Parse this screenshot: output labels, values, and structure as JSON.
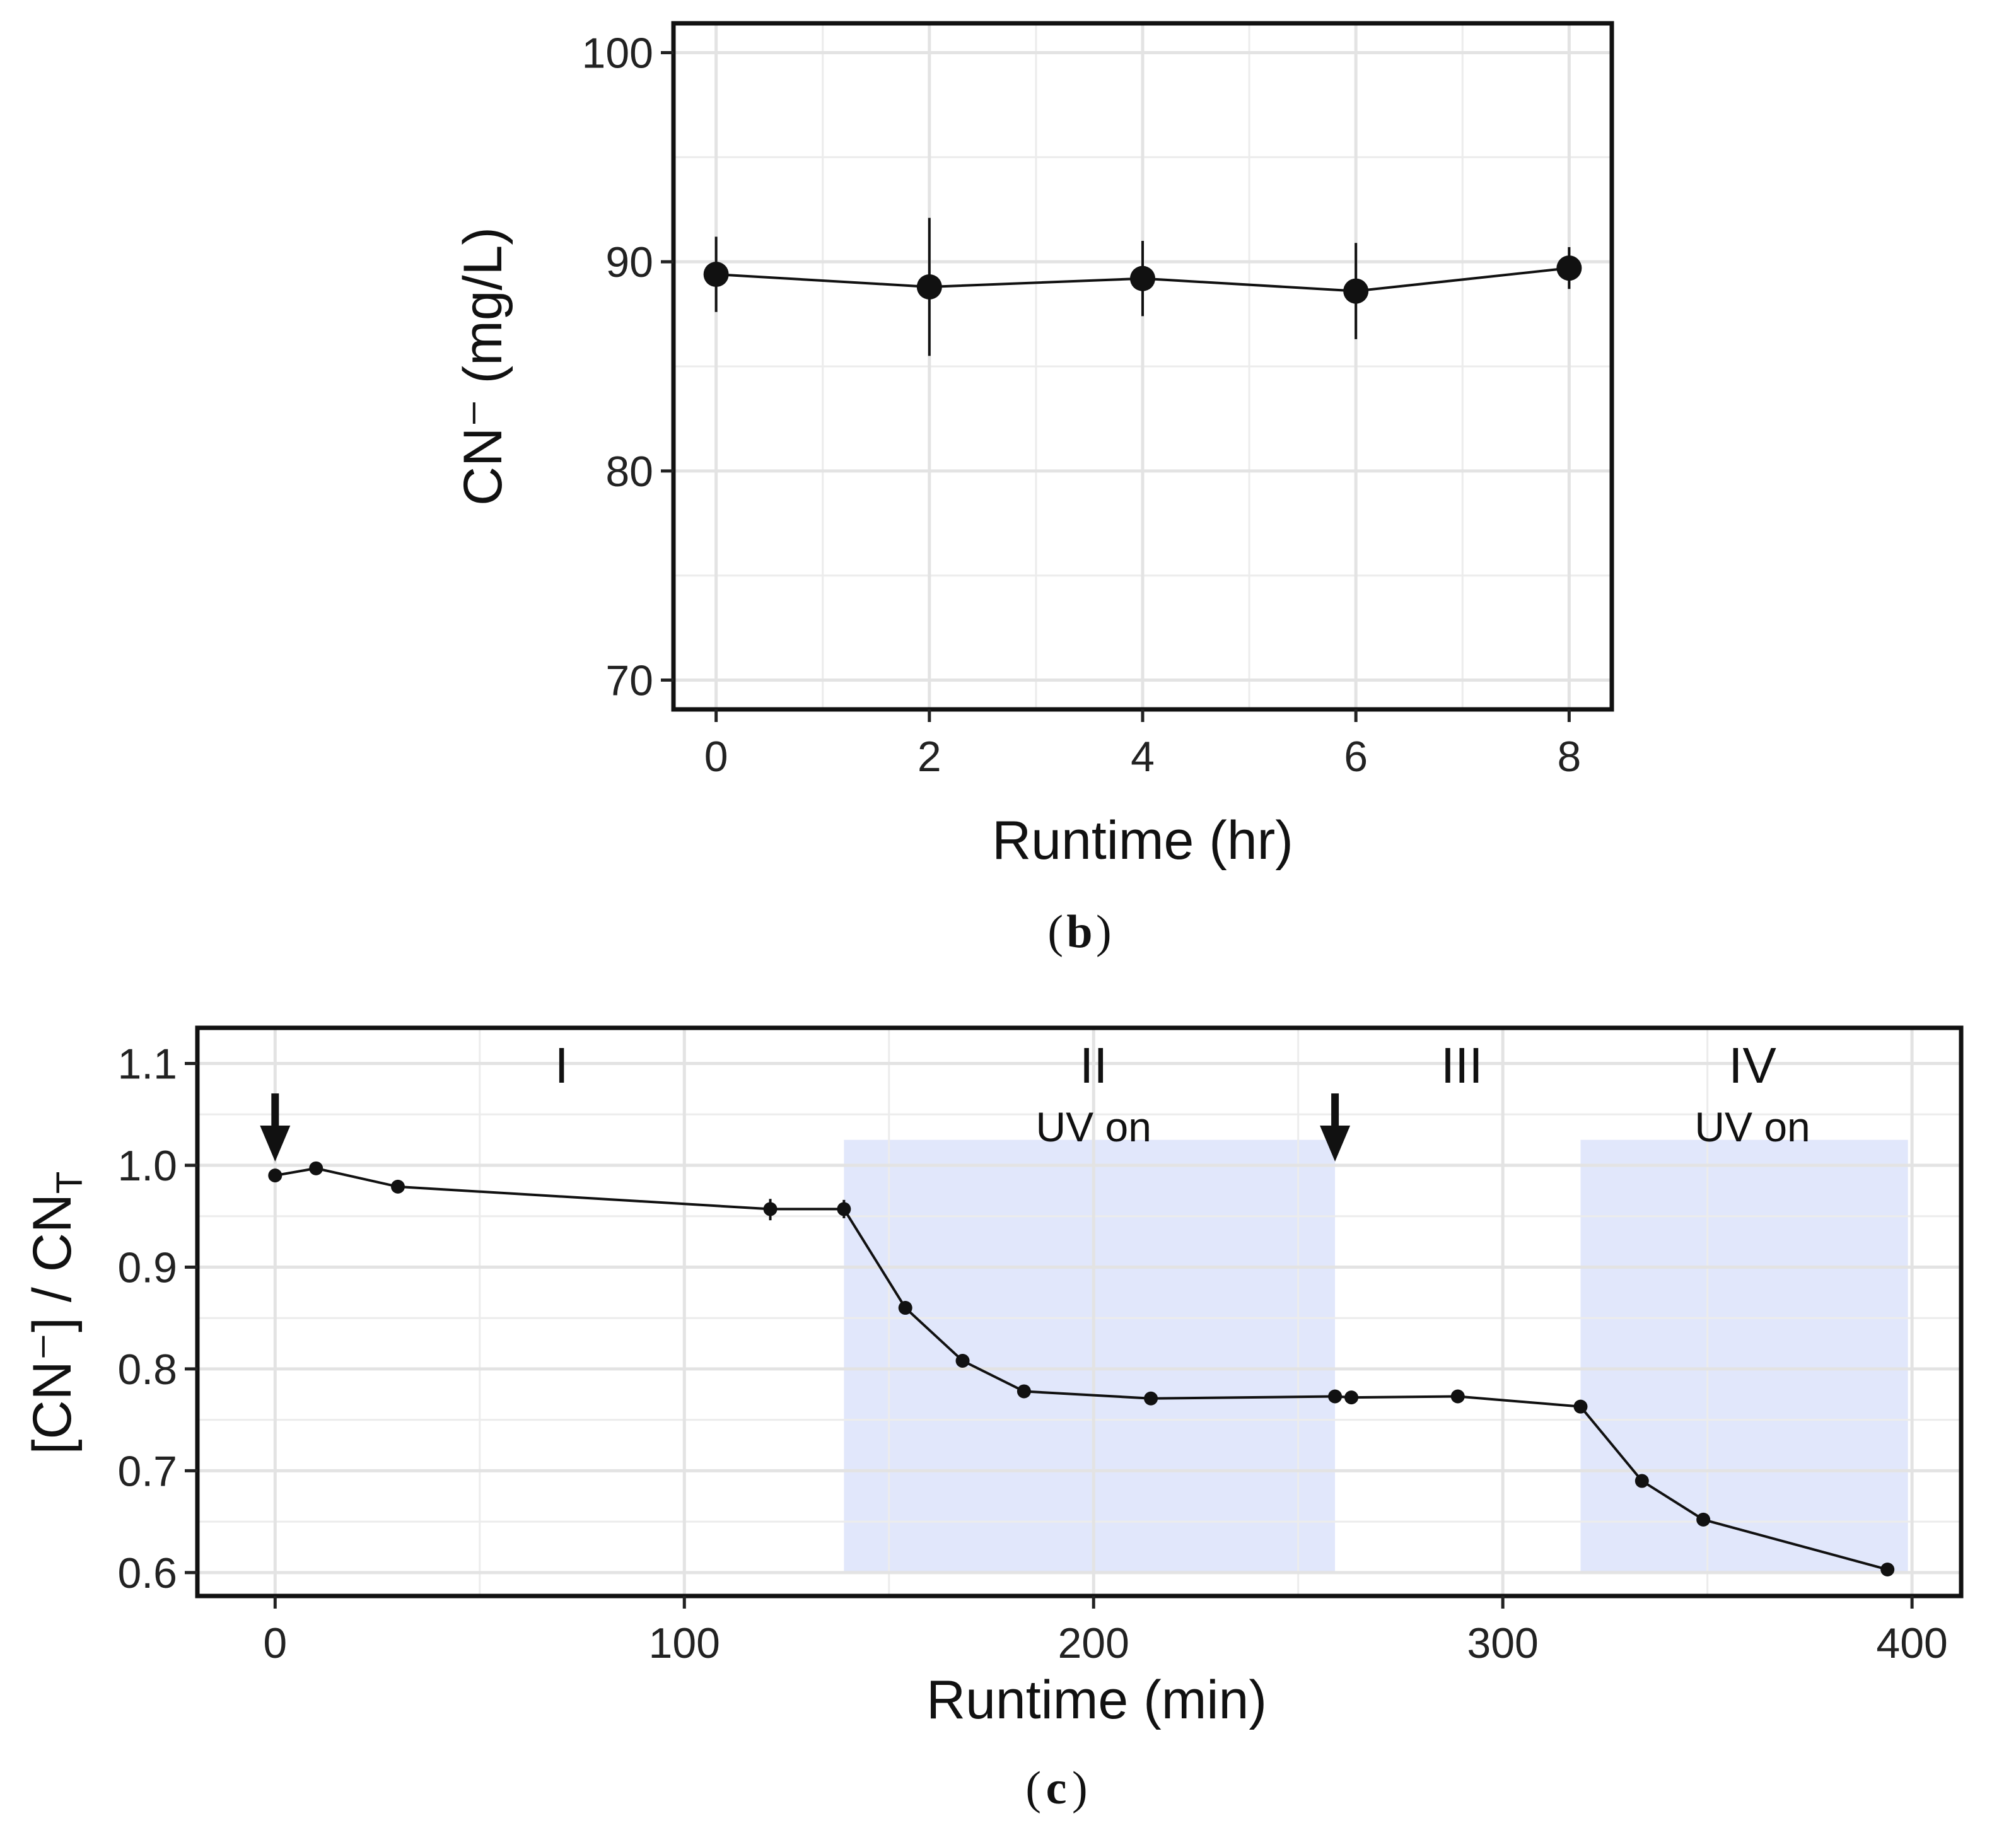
{
  "chart_data": [
    {
      "type": "line",
      "panel": "b",
      "xlabel": "Runtime (hr)",
      "ylabel": "CN⁻ (mg/L)",
      "xlim": [
        -0.4,
        8.4
      ],
      "ylim": [
        68.6,
        101.4
      ],
      "xticks": [
        "0",
        "2",
        "4",
        "6",
        "8"
      ],
      "yticks": [
        "70",
        "80",
        "90",
        "100"
      ],
      "grid": true,
      "points": [
        {
          "x": 0,
          "y": 89.4,
          "ylow": 87.6,
          "yhigh": 91.2
        },
        {
          "x": 2,
          "y": 88.8,
          "ylow": 85.5,
          "yhigh": 92.1
        },
        {
          "x": 4,
          "y": 89.2,
          "ylow": 87.4,
          "yhigh": 91.0
        },
        {
          "x": 6,
          "y": 88.6,
          "ylow": 86.3,
          "yhigh": 90.9
        },
        {
          "x": 8,
          "y": 89.7,
          "ylow": 88.7,
          "yhigh": 90.7
        }
      ],
      "caption": "b"
    },
    {
      "type": "line",
      "panel": "c",
      "xlabel": "Runtime (min)",
      "ylabel_main": "[CN⁻] / CN",
      "ylabel_sub": "T",
      "xlim": [
        -19,
        412
      ],
      "ylim": [
        0.577,
        1.135
      ],
      "xticks": [
        "0",
        "100",
        "200",
        "300",
        "400"
      ],
      "yticks": [
        "0.6",
        "0.7",
        "0.8",
        "0.9",
        "1.0",
        "1.1"
      ],
      "grid": true,
      "shaded_regions": [
        {
          "x0": 139,
          "x1": 259,
          "color": "#e1e7fb"
        },
        {
          "x0": 319,
          "x1": 399,
          "color": "#e1e7fb"
        }
      ],
      "phases": [
        {
          "label": "I",
          "sublabel": "",
          "x": 70
        },
        {
          "label": "II",
          "sublabel": "UV on",
          "x": 200
        },
        {
          "label": "III",
          "sublabel": "",
          "x": 290
        },
        {
          "label": "IV",
          "sublabel": "UV on",
          "x": 361
        }
      ],
      "arrows": [
        0,
        259
      ],
      "points": [
        {
          "x": 0,
          "y": 0.99
        },
        {
          "x": 10,
          "y": 0.997
        },
        {
          "x": 30,
          "y": 0.979
        },
        {
          "x": 121,
          "y": 0.957,
          "ylow": 0.946,
          "yhigh": 0.967
        },
        {
          "x": 139,
          "y": 0.957,
          "ylow": 0.948,
          "yhigh": 0.966
        },
        {
          "x": 154,
          "y": 0.86
        },
        {
          "x": 168,
          "y": 0.808
        },
        {
          "x": 183,
          "y": 0.778
        },
        {
          "x": 214,
          "y": 0.771
        },
        {
          "x": 259,
          "y": 0.773
        },
        {
          "x": 263,
          "y": 0.772
        },
        {
          "x": 289,
          "y": 0.773
        },
        {
          "x": 319,
          "y": 0.763
        },
        {
          "x": 334,
          "y": 0.69
        },
        {
          "x": 349,
          "y": 0.652
        },
        {
          "x": 394,
          "y": 0.603
        }
      ],
      "caption": "c"
    }
  ]
}
